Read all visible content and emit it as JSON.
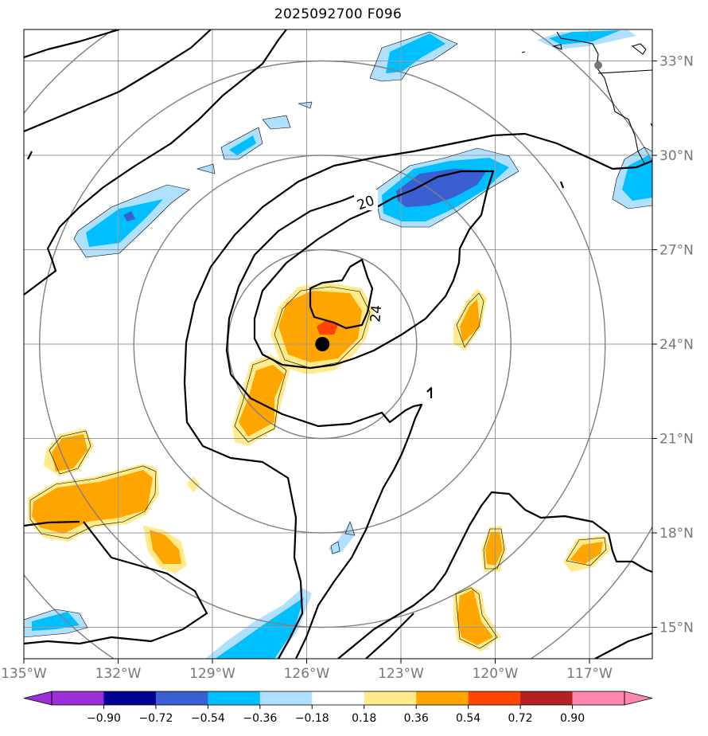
{
  "title": "2025092700 F096",
  "map": {
    "lon_range": [
      -135,
      -115
    ],
    "lat_range": [
      14,
      34
    ],
    "lon_ticks": [
      {
        "value": -135,
        "label": "135°W"
      },
      {
        "value": -132,
        "label": "132°W"
      },
      {
        "value": -129,
        "label": "129°W"
      },
      {
        "value": -126,
        "label": "126°W"
      },
      {
        "value": -123,
        "label": "123°W"
      },
      {
        "value": -120,
        "label": "120°W"
      },
      {
        "value": -117,
        "label": "117°W"
      }
    ],
    "lat_ticks": [
      {
        "value": 15,
        "label": "15°N"
      },
      {
        "value": 18,
        "label": "18°N"
      },
      {
        "value": 21,
        "label": "21°N"
      },
      {
        "value": 24,
        "label": "24°N"
      },
      {
        "value": 27,
        "label": "27°N"
      },
      {
        "value": 30,
        "label": "30°N"
      },
      {
        "value": 33,
        "label": "33°N"
      }
    ],
    "storm_center": {
      "lon": -125.5,
      "lat": 24.0
    },
    "range_rings_deg": [
      3,
      6,
      9,
      12
    ],
    "contour_labels": [
      "20",
      "24"
    ],
    "grid": true
  },
  "colorbar": {
    "labels": [
      "−0.90",
      "−0.72",
      "−0.54",
      "−0.36",
      "−0.18",
      "0.18",
      "0.36",
      "0.54",
      "0.72",
      "0.90"
    ],
    "colors": [
      "#9b30d8",
      "#000090",
      "#3a5fd0",
      "#00bfff",
      "#b0e0ff",
      "#ffffff",
      "#ffeb8c",
      "#ffa500",
      "#ff4500",
      "#b22222",
      "#ff88b0"
    ],
    "under_color": "#9b30d8",
    "over_color": "#ff88b0"
  },
  "colors": {
    "light_blue": "#b0e0ff",
    "blue": "#00bfff",
    "royal_blue": "#3a5fd0",
    "light_yellow": "#ffeb8c",
    "orange": "#ffa500",
    "red_orange": "#ff4500"
  }
}
